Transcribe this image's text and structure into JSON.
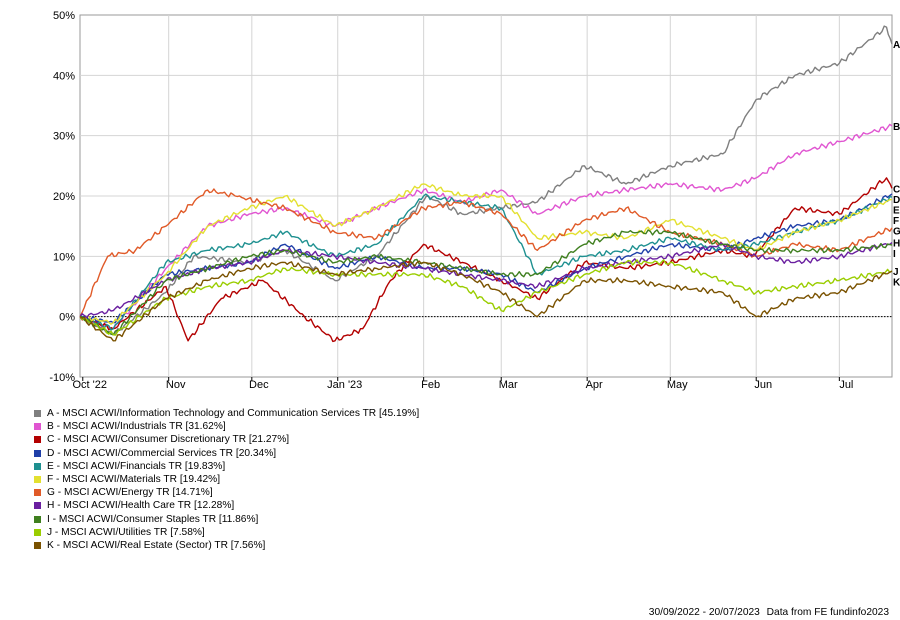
{
  "chart_data": {
    "type": "line",
    "ylim": [
      -10,
      50
    ],
    "y_ticks": [
      "50%",
      "40%",
      "30%",
      "20%",
      "10%",
      "0%",
      "-10%"
    ],
    "x_ticks": [
      "Oct '22",
      "Nov",
      "Dec",
      "Jan '23",
      "Feb",
      "Mar",
      "Apr",
      "May",
      "Jun",
      "Jul"
    ],
    "x_range": [
      "2022-09-30",
      "2023-07-20"
    ],
    "grid": true,
    "legend_position": "bottom-left",
    "series": [
      {
        "letter": "A",
        "name": "A - MSCI ACWI/Information Technology and Communication Services TR [45.19%]",
        "color": "#7f7f7f",
        "points": [
          [
            "2022-09-30",
            0
          ],
          [
            "2022-10-12",
            -3
          ],
          [
            "2022-10-31",
            4
          ],
          [
            "2022-11-10",
            10
          ],
          [
            "2022-11-30",
            9
          ],
          [
            "2022-12-13",
            11
          ],
          [
            "2022-12-31",
            6
          ],
          [
            "2023-01-15",
            10
          ],
          [
            "2023-02-02",
            20
          ],
          [
            "2023-02-15",
            17
          ],
          [
            "2023-03-01",
            18
          ],
          [
            "2023-03-14",
            19
          ],
          [
            "2023-03-31",
            25
          ],
          [
            "2023-04-15",
            22
          ],
          [
            "2023-05-01",
            25
          ],
          [
            "2023-05-20",
            27
          ],
          [
            "2023-06-01",
            36
          ],
          [
            "2023-06-15",
            40
          ],
          [
            "2023-07-01",
            42
          ],
          [
            "2023-07-18",
            48
          ],
          [
            "2023-07-20",
            45.19
          ]
        ]
      },
      {
        "letter": "B",
        "name": "B - MSCI ACWI/Industrials TR [31.62%]",
        "color": "#e055d1",
        "points": [
          [
            "2022-09-30",
            0
          ],
          [
            "2022-10-12",
            -2
          ],
          [
            "2022-10-31",
            8
          ],
          [
            "2022-11-15",
            15
          ],
          [
            "2022-11-30",
            17
          ],
          [
            "2022-12-13",
            18
          ],
          [
            "2022-12-31",
            15
          ],
          [
            "2023-01-15",
            18
          ],
          [
            "2023-02-01",
            21
          ],
          [
            "2023-02-15",
            19
          ],
          [
            "2023-03-01",
            21
          ],
          [
            "2023-03-14",
            17
          ],
          [
            "2023-03-31",
            20
          ],
          [
            "2023-04-15",
            21
          ],
          [
            "2023-05-01",
            22
          ],
          [
            "2023-05-20",
            21
          ],
          [
            "2023-06-01",
            23
          ],
          [
            "2023-06-15",
            27
          ],
          [
            "2023-07-01",
            29
          ],
          [
            "2023-07-20",
            31.62
          ]
        ]
      },
      {
        "letter": "C",
        "name": "C - MSCI ACWI/Consumer Discretionary TR [21.27%]",
        "color": "#b30000",
        "points": [
          [
            "2022-09-30",
            0
          ],
          [
            "2022-10-12",
            -2
          ],
          [
            "2022-10-31",
            5
          ],
          [
            "2022-11-08",
            -4
          ],
          [
            "2022-11-20",
            3
          ],
          [
            "2022-12-05",
            6
          ],
          [
            "2022-12-20",
            0
          ],
          [
            "2022-12-31",
            -4
          ],
          [
            "2023-01-10",
            -2
          ],
          [
            "2023-01-20",
            6
          ],
          [
            "2023-02-01",
            12
          ],
          [
            "2023-02-15",
            9
          ],
          [
            "2023-03-01",
            6
          ],
          [
            "2023-03-14",
            3
          ],
          [
            "2023-03-31",
            9
          ],
          [
            "2023-04-15",
            8
          ],
          [
            "2023-05-01",
            9
          ],
          [
            "2023-05-20",
            11
          ],
          [
            "2023-05-31",
            10
          ],
          [
            "2023-06-15",
            18
          ],
          [
            "2023-07-01",
            17
          ],
          [
            "2023-07-18",
            23
          ],
          [
            "2023-07-20",
            21.27
          ]
        ]
      },
      {
        "letter": "D",
        "name": "D - MSCI ACWI/Commercial Services TR [20.34%]",
        "color": "#1f3fa8",
        "points": [
          [
            "2022-09-30",
            0
          ],
          [
            "2022-10-12",
            -1
          ],
          [
            "2022-10-31",
            7
          ],
          [
            "2022-11-15",
            8
          ],
          [
            "2022-11-30",
            9
          ],
          [
            "2022-12-13",
            12
          ],
          [
            "2022-12-31",
            8
          ],
          [
            "2023-01-15",
            10
          ],
          [
            "2023-02-01",
            8
          ],
          [
            "2023-02-15",
            8
          ],
          [
            "2023-03-01",
            7
          ],
          [
            "2023-03-14",
            4
          ],
          [
            "2023-03-31",
            8
          ],
          [
            "2023-04-15",
            10
          ],
          [
            "2023-05-01",
            12
          ],
          [
            "2023-05-20",
            11
          ],
          [
            "2023-06-01",
            13
          ],
          [
            "2023-06-15",
            15
          ],
          [
            "2023-07-01",
            16
          ],
          [
            "2023-07-20",
            20.34
          ]
        ]
      },
      {
        "letter": "E",
        "name": "E - MSCI ACWI/Financials TR [19.83%]",
        "color": "#1e9090",
        "points": [
          [
            "2022-09-30",
            0
          ],
          [
            "2022-10-12",
            -2
          ],
          [
            "2022-10-31",
            9
          ],
          [
            "2022-11-15",
            11
          ],
          [
            "2022-11-30",
            12
          ],
          [
            "2022-12-13",
            14
          ],
          [
            "2022-12-31",
            10
          ],
          [
            "2023-01-15",
            12
          ],
          [
            "2023-02-01",
            20
          ],
          [
            "2023-02-15",
            19
          ],
          [
            "2023-03-01",
            18
          ],
          [
            "2023-03-14",
            7
          ],
          [
            "2023-03-31",
            10
          ],
          [
            "2023-04-15",
            11
          ],
          [
            "2023-05-01",
            13
          ],
          [
            "2023-05-20",
            11
          ],
          [
            "2023-06-01",
            12
          ],
          [
            "2023-06-15",
            14
          ],
          [
            "2023-07-01",
            16
          ],
          [
            "2023-07-20",
            19.83
          ]
        ]
      },
      {
        "letter": "F",
        "name": "F - MSCI ACWI/Materials TR [19.42%]",
        "color": "#e3e030",
        "points": [
          [
            "2022-09-30",
            0
          ],
          [
            "2022-10-12",
            -1
          ],
          [
            "2022-10-31",
            7
          ],
          [
            "2022-11-15",
            15
          ],
          [
            "2022-11-30",
            18
          ],
          [
            "2022-12-13",
            20
          ],
          [
            "2022-12-31",
            15
          ],
          [
            "2023-01-15",
            18
          ],
          [
            "2023-02-01",
            22
          ],
          [
            "2023-02-15",
            20
          ],
          [
            "2023-03-01",
            20
          ],
          [
            "2023-03-14",
            13
          ],
          [
            "2023-03-31",
            14
          ],
          [
            "2023-04-15",
            13
          ],
          [
            "2023-05-01",
            16
          ],
          [
            "2023-05-20",
            13
          ],
          [
            "2023-06-01",
            11
          ],
          [
            "2023-06-15",
            14
          ],
          [
            "2023-07-01",
            16
          ],
          [
            "2023-07-20",
            19.42
          ]
        ]
      },
      {
        "letter": "G",
        "name": "G - MSCI ACWI/Energy TR [14.71%]",
        "color": "#e05a28",
        "points": [
          [
            "2022-09-30",
            0
          ],
          [
            "2022-10-10",
            10
          ],
          [
            "2022-10-20",
            11
          ],
          [
            "2022-10-31",
            15
          ],
          [
            "2022-11-15",
            21
          ],
          [
            "2022-11-25",
            20
          ],
          [
            "2022-12-13",
            18
          ],
          [
            "2022-12-31",
            14
          ],
          [
            "2023-01-15",
            13
          ],
          [
            "2023-02-01",
            18
          ],
          [
            "2023-02-15",
            19
          ],
          [
            "2023-03-01",
            17
          ],
          [
            "2023-03-14",
            11
          ],
          [
            "2023-03-31",
            16
          ],
          [
            "2023-04-15",
            18
          ],
          [
            "2023-05-01",
            14
          ],
          [
            "2023-05-20",
            12
          ],
          [
            "2023-06-01",
            10
          ],
          [
            "2023-06-15",
            12
          ],
          [
            "2023-07-01",
            11
          ],
          [
            "2023-07-20",
            14.71
          ]
        ]
      },
      {
        "letter": "H",
        "name": "H - MSCI ACWI/Health Care TR [12.28%]",
        "color": "#6a1fa0",
        "points": [
          [
            "2022-09-30",
            0
          ],
          [
            "2022-10-12",
            1
          ],
          [
            "2022-10-31",
            6
          ],
          [
            "2022-11-15",
            8
          ],
          [
            "2022-11-30",
            9
          ],
          [
            "2022-12-13",
            11
          ],
          [
            "2022-12-31",
            10
          ],
          [
            "2023-01-15",
            9
          ],
          [
            "2023-02-01",
            8
          ],
          [
            "2023-02-15",
            7
          ],
          [
            "2023-03-01",
            6
          ],
          [
            "2023-03-14",
            5
          ],
          [
            "2023-03-31",
            8
          ],
          [
            "2023-04-15",
            9
          ],
          [
            "2023-05-01",
            10
          ],
          [
            "2023-05-20",
            12
          ],
          [
            "2023-06-01",
            10
          ],
          [
            "2023-06-15",
            9
          ],
          [
            "2023-07-01",
            10
          ],
          [
            "2023-07-20",
            12.28
          ]
        ]
      },
      {
        "letter": "I",
        "name": "I - MSCI ACWI/Consumer Staples TR [11.86%]",
        "color": "#3f7f1f",
        "points": [
          [
            "2022-09-30",
            0
          ],
          [
            "2022-10-12",
            -3
          ],
          [
            "2022-10-31",
            6
          ],
          [
            "2022-11-15",
            8
          ],
          [
            "2022-11-30",
            10
          ],
          [
            "2022-12-13",
            11
          ],
          [
            "2022-12-31",
            9
          ],
          [
            "2023-01-15",
            10
          ],
          [
            "2023-02-01",
            9
          ],
          [
            "2023-02-15",
            8
          ],
          [
            "2023-03-01",
            7
          ],
          [
            "2023-03-14",
            7
          ],
          [
            "2023-03-31",
            12
          ],
          [
            "2023-04-15",
            14
          ],
          [
            "2023-05-01",
            14
          ],
          [
            "2023-05-20",
            12
          ],
          [
            "2023-06-01",
            11
          ],
          [
            "2023-06-15",
            11
          ],
          [
            "2023-07-01",
            11
          ],
          [
            "2023-07-20",
            11.86
          ]
        ]
      },
      {
        "letter": "J",
        "name": "J - MSCI ACWI/Utilities TR [7.58%]",
        "color": "#9acd00",
        "points": [
          [
            "2022-09-30",
            0
          ],
          [
            "2022-10-12",
            -3
          ],
          [
            "2022-10-31",
            3
          ],
          [
            "2022-11-15",
            5
          ],
          [
            "2022-11-30",
            6
          ],
          [
            "2022-12-13",
            8
          ],
          [
            "2022-12-31",
            7
          ],
          [
            "2023-01-15",
            7
          ],
          [
            "2023-02-01",
            7
          ],
          [
            "2023-02-15",
            5
          ],
          [
            "2023-03-01",
            1
          ],
          [
            "2023-03-14",
            4
          ],
          [
            "2023-03-31",
            7
          ],
          [
            "2023-04-15",
            9
          ],
          [
            "2023-05-01",
            9
          ],
          [
            "2023-05-20",
            6
          ],
          [
            "2023-06-01",
            4
          ],
          [
            "2023-06-15",
            5
          ],
          [
            "2023-07-01",
            6
          ],
          [
            "2023-07-20",
            7.58
          ]
        ]
      },
      {
        "letter": "K",
        "name": "K - MSCI ACWI/Real Estate (Sector) TR [7.56%]",
        "color": "#7a5200",
        "points": [
          [
            "2022-09-30",
            0
          ],
          [
            "2022-10-12",
            -4
          ],
          [
            "2022-10-31",
            3
          ],
          [
            "2022-11-15",
            6
          ],
          [
            "2022-11-30",
            8
          ],
          [
            "2022-12-13",
            9
          ],
          [
            "2022-12-31",
            7
          ],
          [
            "2023-01-15",
            8
          ],
          [
            "2023-02-01",
            9
          ],
          [
            "2023-02-15",
            7
          ],
          [
            "2023-03-01",
            4
          ],
          [
            "2023-03-14",
            0
          ],
          [
            "2023-03-31",
            6
          ],
          [
            "2023-04-15",
            6
          ],
          [
            "2023-05-01",
            5
          ],
          [
            "2023-05-20",
            4
          ],
          [
            "2023-06-01",
            0
          ],
          [
            "2023-06-15",
            3
          ],
          [
            "2023-07-01",
            4
          ],
          [
            "2023-07-20",
            7.56
          ]
        ]
      }
    ]
  },
  "footer": {
    "date_range": "30/09/2022 - 20/07/2023",
    "source": "Data from FE fundinfo2023"
  }
}
